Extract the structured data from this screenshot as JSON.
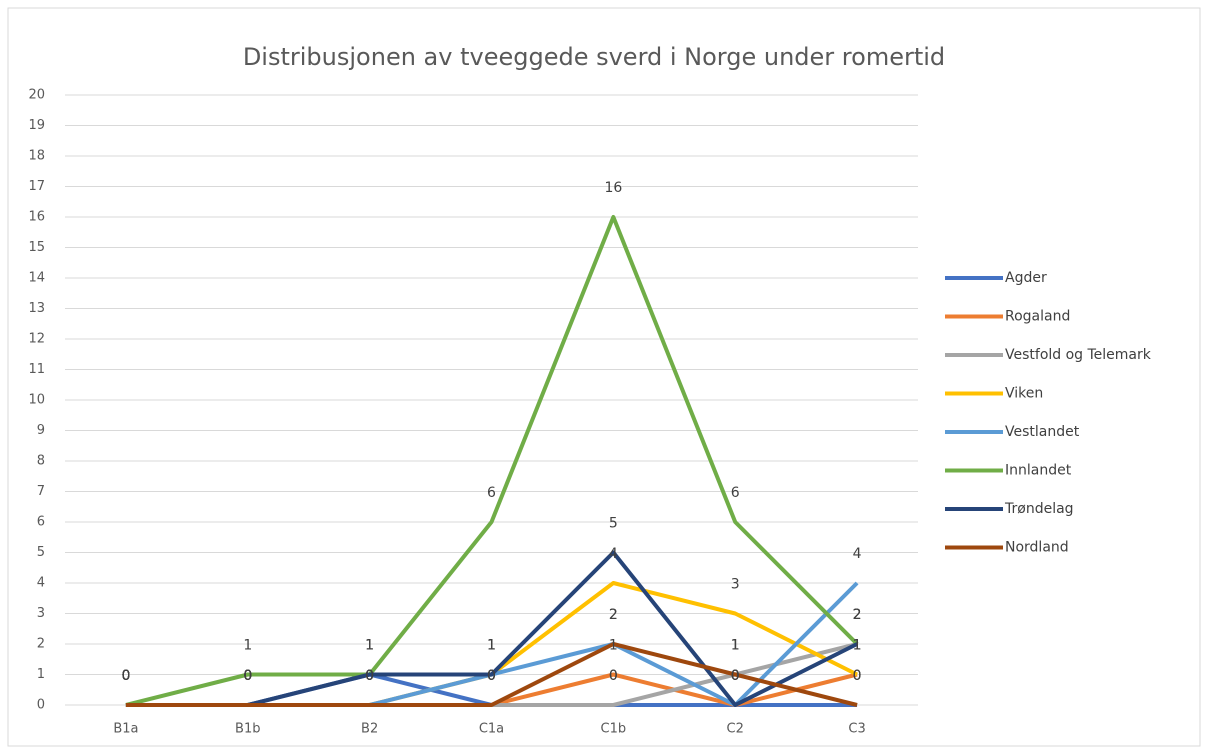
{
  "chart_data": {
    "type": "line",
    "title": "Distribusjonen av tveeggede sverd i Norge under romertid",
    "categories": [
      "B1a",
      "B1b",
      "B2",
      "C1a",
      "C1b",
      "C2",
      "C3"
    ],
    "series": [
      {
        "name": "Agder",
        "color": "#4472c4",
        "values": [
          0,
          0,
          1,
          0,
          0,
          0,
          0
        ]
      },
      {
        "name": "Rogaland",
        "color": "#ed7d31",
        "values": [
          0,
          0,
          0,
          0,
          1,
          0,
          1
        ]
      },
      {
        "name": "Vestfold og Telemark",
        "color": "#a5a5a5",
        "values": [
          0,
          0,
          0,
          0,
          0,
          1,
          2
        ]
      },
      {
        "name": "Viken",
        "color": "#ffc000",
        "values": [
          0,
          0,
          0,
          1,
          4,
          3,
          1
        ]
      },
      {
        "name": "Vestlandet",
        "color": "#5b9bd5",
        "values": [
          0,
          0,
          0,
          1,
          2,
          0,
          4
        ]
      },
      {
        "name": "Innlandet",
        "color": "#70ad47",
        "values": [
          0,
          1,
          1,
          6,
          16,
          6,
          2
        ]
      },
      {
        "name": "Trøndelag",
        "color": "#264478",
        "values": [
          0,
          0,
          1,
          1,
          5,
          0,
          2
        ]
      },
      {
        "name": "Nordland",
        "color": "#9e480e",
        "values": [
          0,
          0,
          0,
          0,
          2,
          1,
          0
        ]
      }
    ],
    "ylim": [
      0,
      20
    ],
    "yticks": [
      0,
      1,
      2,
      3,
      4,
      5,
      6,
      7,
      8,
      9,
      10,
      11,
      12,
      13,
      14,
      15,
      16,
      17,
      18,
      19,
      20
    ],
    "grid": true,
    "legend": "right"
  }
}
